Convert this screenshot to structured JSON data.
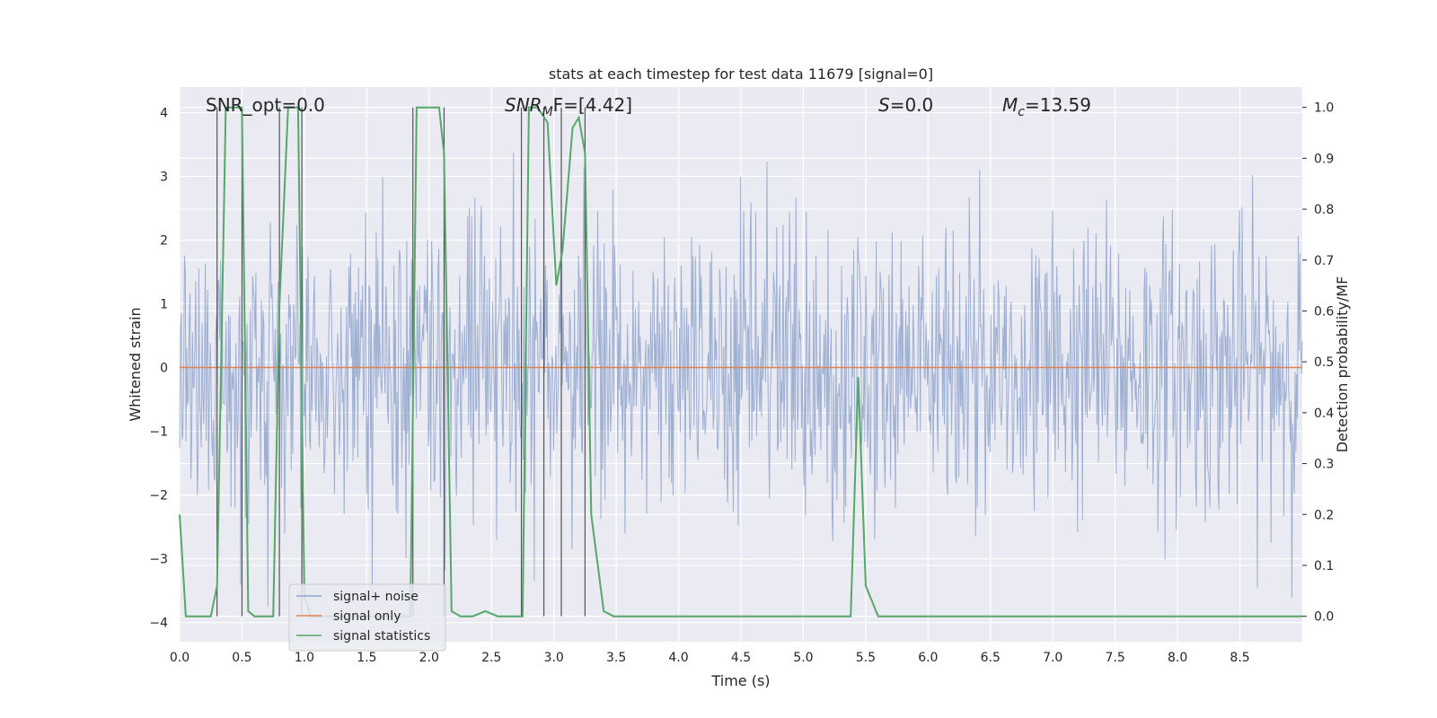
{
  "chart_data": {
    "type": "line",
    "title": "stats at each timestep for test data 11679 [signal=0]",
    "xlabel": "Time (s)",
    "ylabel": "Whitened strain",
    "y2label": "Detection probability/MF",
    "xlim": [
      0.0,
      9.0
    ],
    "ylim": [
      -4.3,
      4.4
    ],
    "y2lim": [
      -0.05,
      1.04
    ],
    "xticks": [
      "0.0",
      "0.5",
      "1.0",
      "1.5",
      "2.0",
      "2.5",
      "3.0",
      "3.5",
      "4.0",
      "4.5",
      "5.0",
      "5.5",
      "6.0",
      "6.5",
      "7.0",
      "7.5",
      "8.0",
      "8.5"
    ],
    "yticks": [
      "4",
      "3",
      "2",
      "1",
      "0",
      "−1",
      "−2",
      "−3",
      "−4"
    ],
    "y2ticks": [
      "1.0",
      "0.9",
      "0.8",
      "0.7",
      "0.6",
      "0.5",
      "0.4",
      "0.3",
      "0.2",
      "0.1",
      "0.0"
    ],
    "grid": true,
    "legend_position": "lower-left",
    "annotations": {
      "snr_opt": "SNR_opt=0.0",
      "snr_mf_base": "SNR",
      "snr_mf_sub": "M",
      "snr_mf_rest": "F=[4.42]",
      "s_var": "S",
      "s_rest": "=0.0",
      "mc_base": "M",
      "mc_sub": "c",
      "mc_rest": "=13.59"
    },
    "series": [
      {
        "name": "signal+ noise",
        "color": "#8fa4cc",
        "description_values": "whitened noise, about 1300 samples, amplitude roughly ±1.6 with spikes to ±4"
      },
      {
        "name": "signal only",
        "color": "#dd8452",
        "x": [
          0.0,
          9.0
        ],
        "y": [
          0.0,
          0.0
        ]
      },
      {
        "name": "signal statistics",
        "color": "#55a868",
        "x": [
          0.0,
          0.05,
          0.25,
          0.3,
          0.37,
          0.5,
          0.55,
          0.6,
          0.75,
          0.8,
          0.87,
          0.95,
          1.0,
          1.05,
          1.1,
          1.2,
          1.85,
          1.9,
          1.95,
          2.08,
          2.12,
          2.18,
          2.25,
          2.35,
          2.45,
          2.55,
          2.75,
          2.8,
          2.87,
          2.95,
          3.02,
          3.07,
          3.15,
          3.2,
          3.25,
          3.3,
          3.4,
          3.48,
          4.5,
          4.8,
          5.2,
          5.38,
          5.44,
          5.5,
          5.6,
          6.0,
          9.0
        ],
        "y": [
          0.2,
          0.0,
          0.0,
          0.06,
          1.0,
          1.0,
          0.01,
          0.0,
          0.0,
          0.61,
          1.0,
          1.0,
          0.04,
          0.0,
          0.0,
          0.0,
          0.0,
          1.0,
          1.0,
          1.0,
          0.91,
          0.01,
          0.0,
          0.0,
          0.01,
          0.0,
          0.0,
          1.0,
          1.0,
          0.97,
          0.65,
          0.72,
          0.96,
          0.98,
          0.91,
          0.2,
          0.01,
          0.0,
          0.0,
          0.0,
          0.0,
          0.0,
          0.47,
          0.06,
          0.0,
          0.0,
          0.0
        ]
      }
    ],
    "vertical_markers": [
      0.3,
      0.5,
      0.8,
      0.98,
      1.87,
      2.12,
      2.74,
      2.92,
      3.06,
      3.25
    ]
  }
}
